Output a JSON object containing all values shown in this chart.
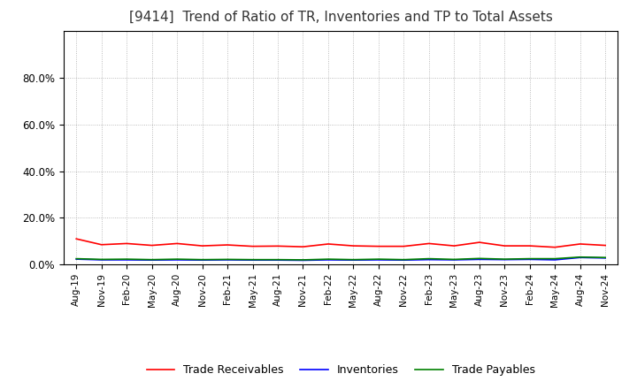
{
  "title": "[9414]  Trend of Ratio of TR, Inventories and TP to Total Assets",
  "title_fontsize": 11,
  "ylim": [
    0.0,
    1.0
  ],
  "yticks": [
    0.0,
    0.2,
    0.4,
    0.6,
    0.8
  ],
  "yticklabels": [
    "0.0%",
    "20.0%",
    "40.0%",
    "60.0%",
    "80.0%"
  ],
  "background_color": "#ffffff",
  "plot_bg_color": "#ffffff",
  "grid_color": "#aaaaaa",
  "legend": [
    "Trade Receivables",
    "Inventories",
    "Trade Payables"
  ],
  "line_colors": [
    "#ff0000",
    "#0000ff",
    "#008000"
  ],
  "dates": [
    "Aug-19",
    "Nov-19",
    "Feb-20",
    "May-20",
    "Aug-20",
    "Nov-20",
    "Feb-21",
    "May-21",
    "Aug-21",
    "Nov-21",
    "Feb-22",
    "May-22",
    "Aug-22",
    "Nov-22",
    "Feb-23",
    "May-23",
    "Aug-23",
    "Nov-23",
    "Feb-24",
    "May-24",
    "Aug-24",
    "Nov-24"
  ],
  "trade_receivables": [
    0.11,
    0.085,
    0.09,
    0.082,
    0.09,
    0.08,
    0.084,
    0.078,
    0.079,
    0.076,
    0.088,
    0.08,
    0.078,
    0.078,
    0.09,
    0.08,
    0.095,
    0.08,
    0.08,
    0.074,
    0.088,
    0.082
  ],
  "inventories": [
    0.023,
    0.02,
    0.02,
    0.019,
    0.02,
    0.019,
    0.02,
    0.019,
    0.019,
    0.018,
    0.02,
    0.019,
    0.02,
    0.019,
    0.021,
    0.02,
    0.022,
    0.021,
    0.022,
    0.02,
    0.03,
    0.028
  ],
  "trade_payables": [
    0.025,
    0.022,
    0.023,
    0.021,
    0.023,
    0.021,
    0.022,
    0.021,
    0.021,
    0.02,
    0.023,
    0.021,
    0.023,
    0.021,
    0.025,
    0.022,
    0.026,
    0.023,
    0.025,
    0.025,
    0.032,
    0.03
  ]
}
